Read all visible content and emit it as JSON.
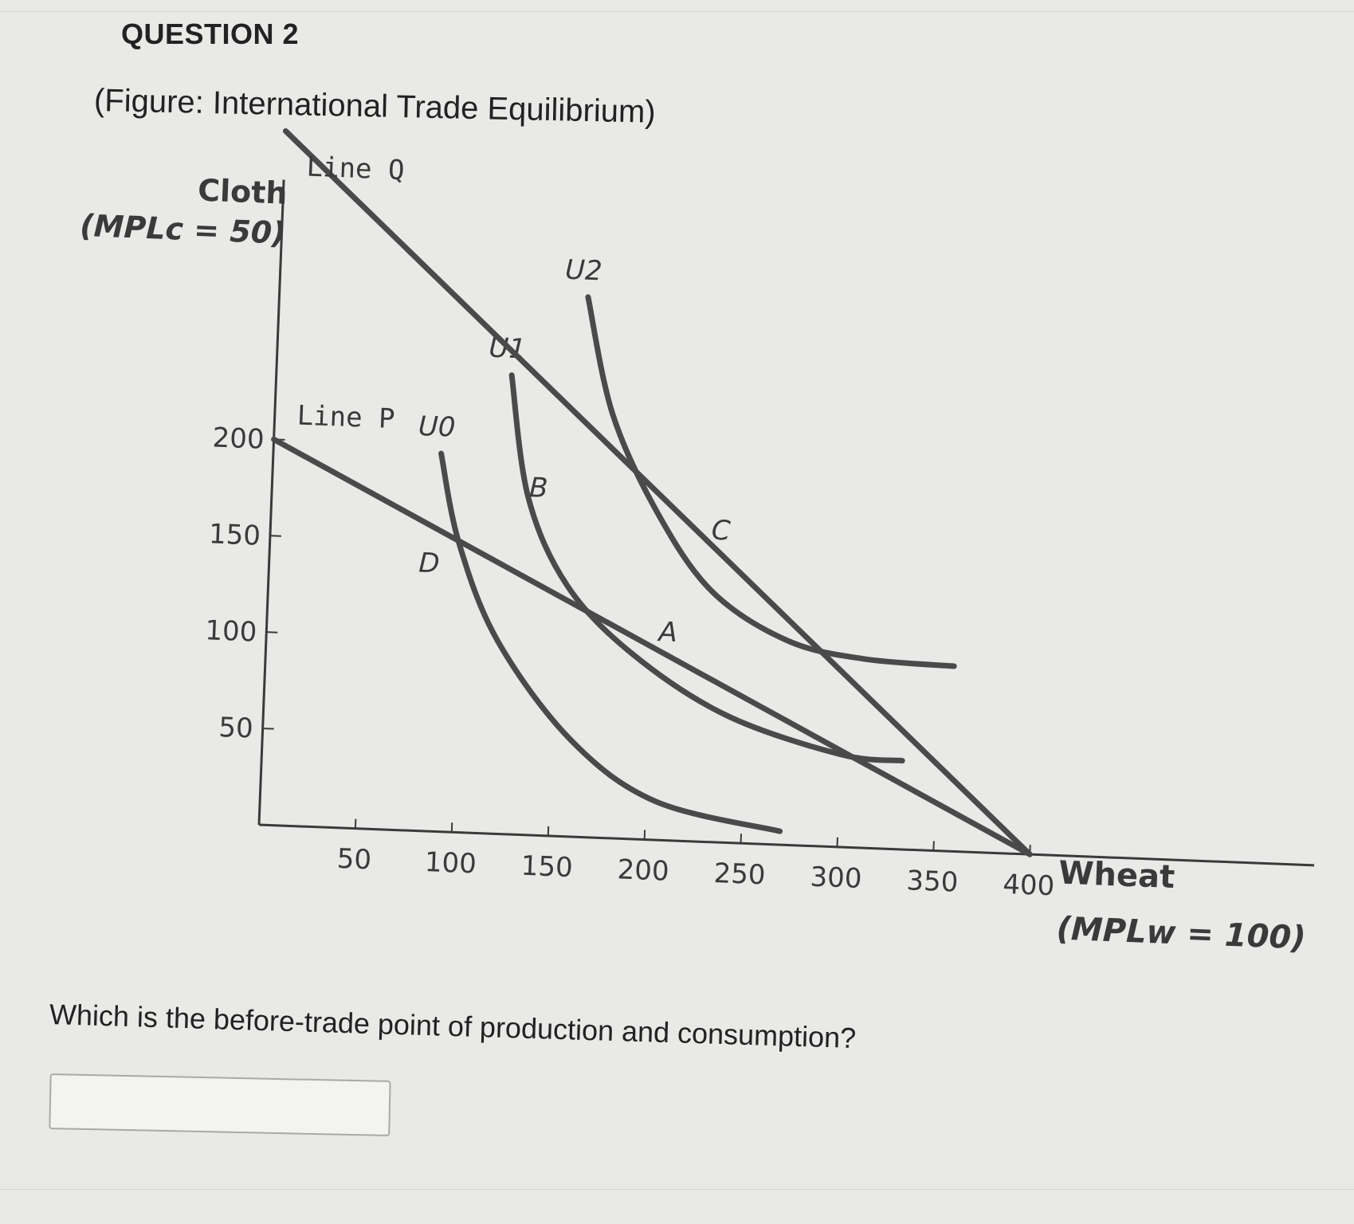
{
  "question": {
    "number_label": "QUESTION 2",
    "figure_title": "(Figure: International Trade Equilibrium)",
    "prompt": "Which is the before-trade point of production and consumption?",
    "answer_value": ""
  },
  "chart_data": {
    "type": "line",
    "y_axis": {
      "label": "Cloth",
      "sublabel": "(MPLc = 50)",
      "ticks": [
        200,
        150,
        100,
        50
      ]
    },
    "x_axis": {
      "label": "Wheat",
      "sublabel": "(MPLw = 100)",
      "ticks": [
        50,
        100,
        150,
        200,
        250,
        300,
        350,
        400
      ]
    },
    "lines": [
      {
        "name": "Line P",
        "points": [
          [
            0,
            200
          ],
          [
            400,
            0
          ]
        ]
      },
      {
        "name": "Line Q",
        "points": [
          [
            0,
            360
          ],
          [
            400,
            0
          ]
        ]
      }
    ],
    "curves": [
      {
        "name": "U0",
        "points": [
          [
            87,
            196
          ],
          [
            98,
            150
          ],
          [
            120,
            100
          ],
          [
            160,
            50
          ],
          [
            205,
            20
          ],
          [
            270,
            7
          ]
        ]
      },
      {
        "name": "U1",
        "points": [
          [
            122,
            238
          ],
          [
            133,
            175
          ],
          [
            155,
            130
          ],
          [
            190,
            96
          ],
          [
            240,
            66
          ],
          [
            300,
            48
          ],
          [
            332,
            46
          ]
        ]
      },
      {
        "name": "U2",
        "points": [
          [
            160,
            280
          ],
          [
            175,
            220
          ],
          [
            200,
            170
          ],
          [
            230,
            130
          ],
          [
            270,
            106
          ],
          [
            310,
            98
          ],
          [
            357,
            96
          ]
        ]
      }
    ],
    "points": [
      {
        "label": "A",
        "x": 200,
        "y": 100
      },
      {
        "label": "B",
        "x": 135,
        "y": 168
      },
      {
        "label": "C",
        "x": 222,
        "y": 152
      },
      {
        "label": "D",
        "x": 85,
        "y": 145
      }
    ],
    "colors": {
      "lines": "#4a4a4a",
      "axes": "#3a3a3a"
    }
  }
}
